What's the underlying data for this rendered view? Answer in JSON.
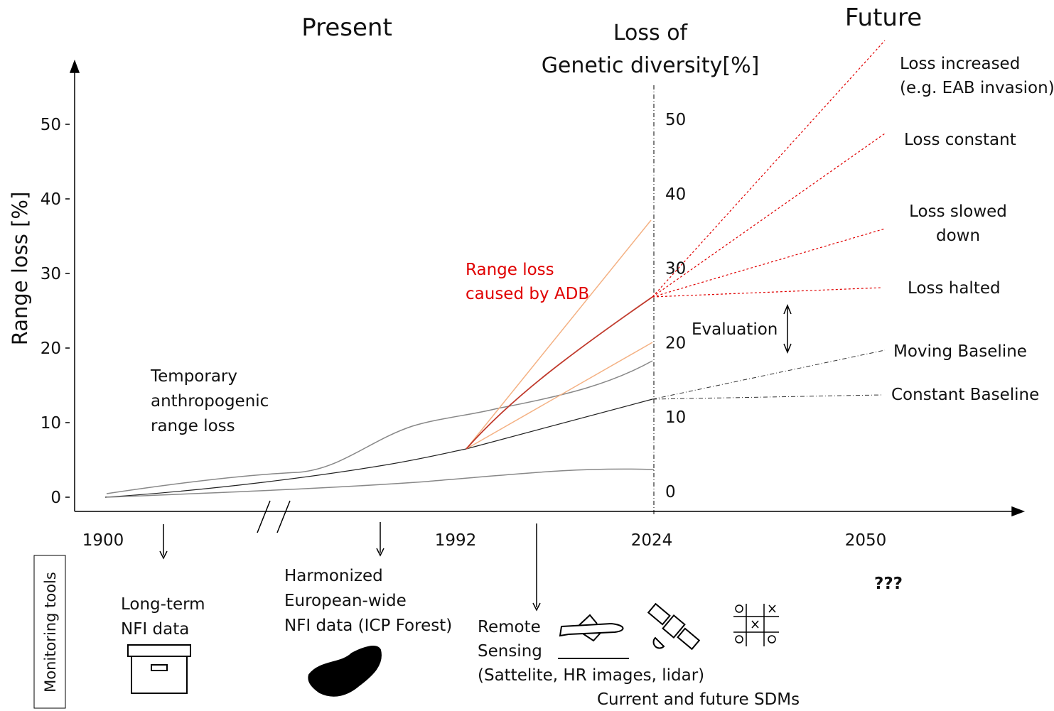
{
  "headings": {
    "present": "Present",
    "future": "Future",
    "genetic_title": [
      "Loss of",
      "Genetic diversity[%]"
    ]
  },
  "y_axis": {
    "title": "Range loss [%]",
    "ticks": [
      50,
      40,
      30,
      20,
      10,
      0
    ]
  },
  "genetic_axis": {
    "ticks": [
      50,
      40,
      30,
      20,
      10,
      0
    ]
  },
  "x_axis": {
    "labels": [
      1900,
      1992,
      2024,
      2050
    ]
  },
  "scenarios": {
    "increased": [
      "Loss increased",
      "(e.g. EAB invasion)"
    ],
    "constant": [
      "Loss constant"
    ],
    "slowed": [
      "Loss slowed",
      "down"
    ],
    "halted": [
      "Loss halted"
    ],
    "moving_baseline": "Moving Baseline",
    "constant_baseline": "Constant Baseline"
  },
  "annotations": {
    "adb": [
      "Range loss",
      "caused by ADB"
    ],
    "temporary": [
      "Temporary",
      "anthropogenic",
      "range loss"
    ],
    "evaluation": "Evaluation",
    "unknown": "???"
  },
  "monitoring": {
    "label": "Monitoring tools",
    "nfi": [
      "Long-term",
      "NFI data"
    ],
    "icp": [
      "Harmonized",
      "European-wide",
      "NFI data (ICP Forest)"
    ],
    "remote": [
      "Remote",
      "Sensing",
      "(Sattelite, HR images, lidar)"
    ],
    "sdm": "Current and future SDMs"
  }
}
